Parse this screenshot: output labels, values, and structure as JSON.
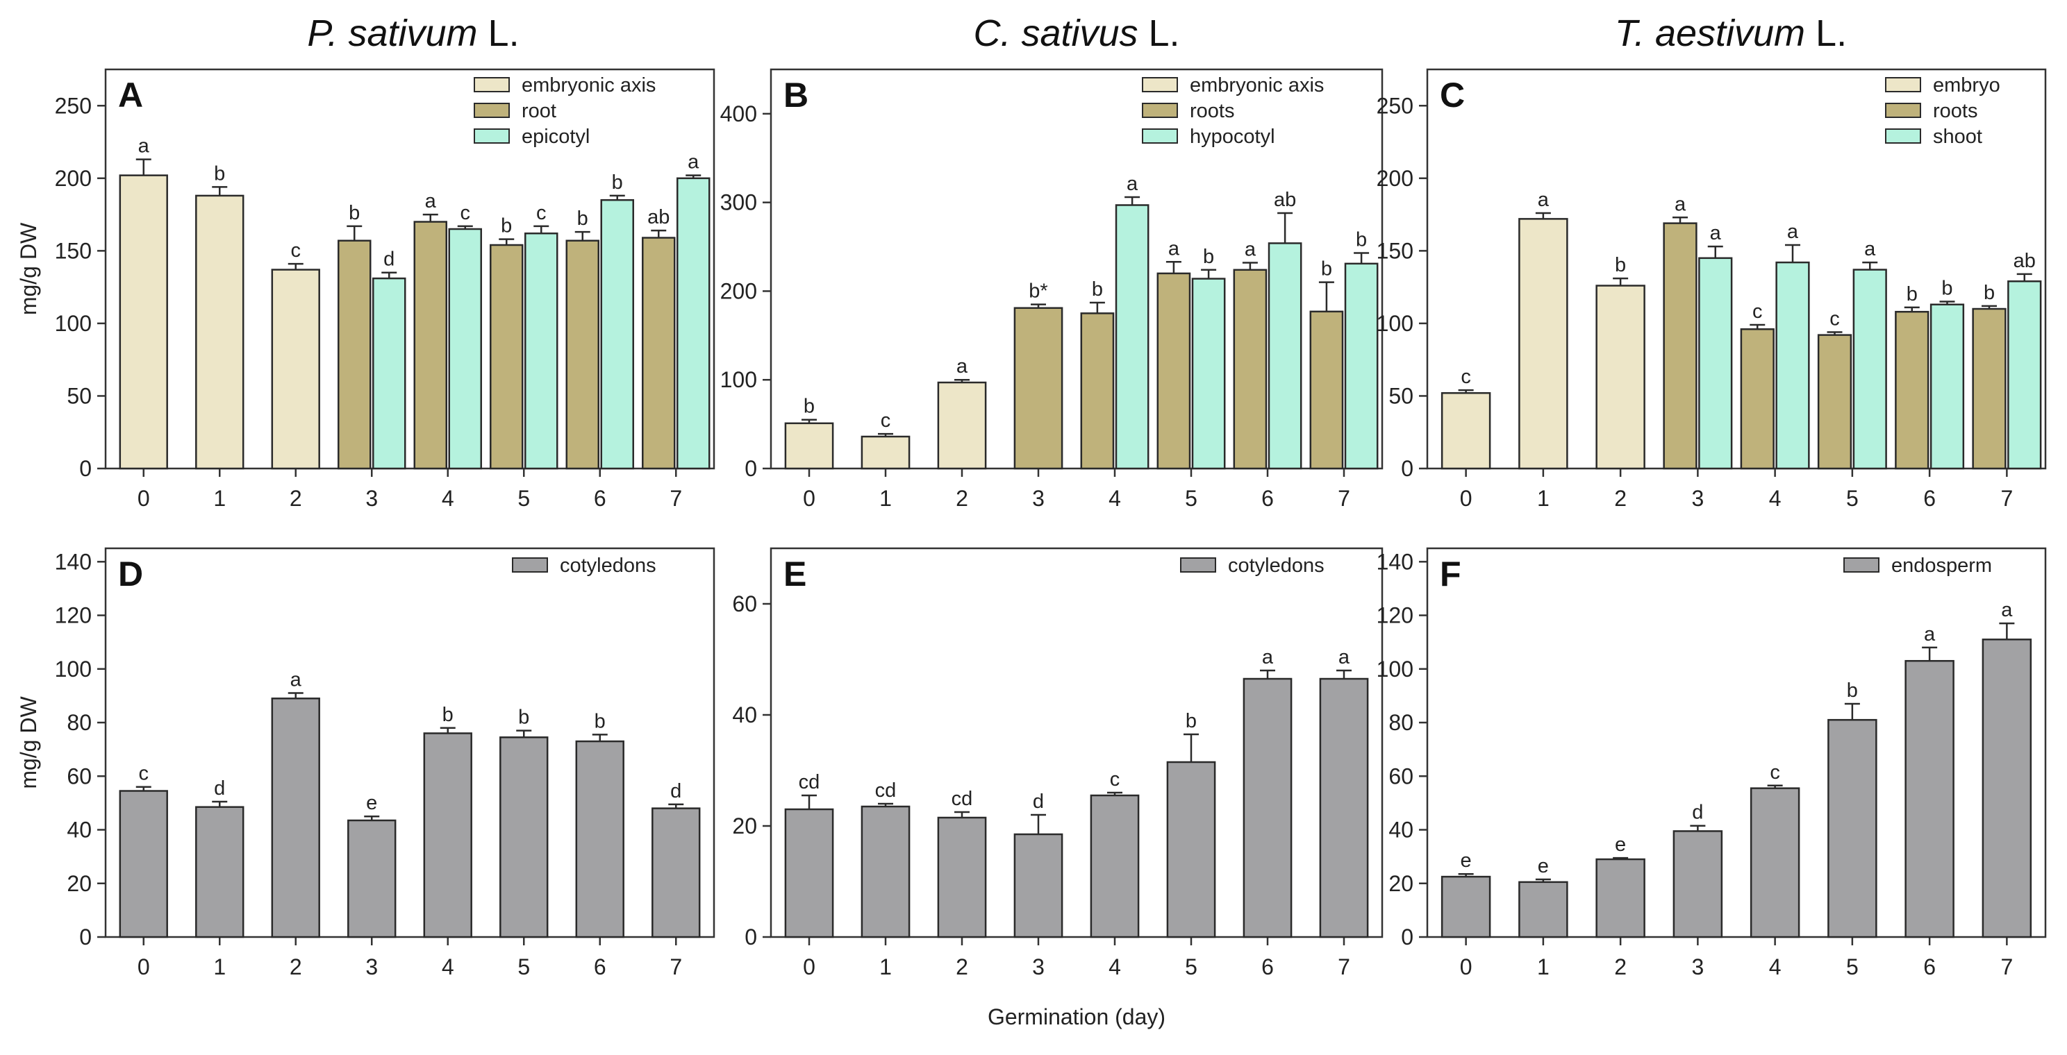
{
  "titles": [
    {
      "italic": "P. sativum",
      "rest": " L."
    },
    {
      "italic": "C. sativus",
      "rest": " L."
    },
    {
      "italic": "T. aestivum",
      "rest": " L."
    }
  ],
  "shared_xlabel": "Germination (day)",
  "colors": {
    "embryo": "#ede6c8",
    "root": "#bfb27b",
    "shoot": "#b5f2de",
    "storage": "#a2a2a4"
  },
  "chart_data": [
    {
      "panel": "A",
      "type": "bar",
      "ylabel": "mg/g DW",
      "ylim": [
        0,
        275
      ],
      "yticks": [
        0,
        50,
        100,
        150,
        200,
        250
      ],
      "days": [
        "0",
        "1",
        "2",
        "3",
        "4",
        "5",
        "6",
        "7"
      ],
      "legend": [
        {
          "label": "embryonic axis",
          "color": "embryo"
        },
        {
          "label": "root",
          "color": "root"
        },
        {
          "label": "epicotyl",
          "color": "shoot"
        }
      ],
      "bars": [
        {
          "day": 0,
          "pos": 0,
          "series": "embryo",
          "value": 202,
          "err": 11,
          "sig": "a"
        },
        {
          "day": 1,
          "pos": 0,
          "series": "embryo",
          "value": 188,
          "err": 6,
          "sig": "b"
        },
        {
          "day": 2,
          "pos": 0,
          "series": "embryo",
          "value": 137,
          "err": 4,
          "sig": "c"
        },
        {
          "day": 3,
          "pos": -1,
          "series": "root",
          "value": 157,
          "err": 10,
          "sig": "b"
        },
        {
          "day": 3,
          "pos": 1,
          "series": "shoot",
          "value": 131,
          "err": 4,
          "sig": "d"
        },
        {
          "day": 4,
          "pos": -1,
          "series": "root",
          "value": 170,
          "err": 5,
          "sig": "a"
        },
        {
          "day": 4,
          "pos": 1,
          "series": "shoot",
          "value": 165,
          "err": 2,
          "sig": "c"
        },
        {
          "day": 5,
          "pos": -1,
          "series": "root",
          "value": 154,
          "err": 4,
          "sig": "b"
        },
        {
          "day": 5,
          "pos": 1,
          "series": "shoot",
          "value": 162,
          "err": 5,
          "sig": "c"
        },
        {
          "day": 6,
          "pos": -1,
          "series": "root",
          "value": 157,
          "err": 6,
          "sig": "b"
        },
        {
          "day": 6,
          "pos": 1,
          "series": "shoot",
          "value": 185,
          "err": 3,
          "sig": "b"
        },
        {
          "day": 7,
          "pos": -1,
          "series": "root",
          "value": 159,
          "err": 5,
          "sig": "ab"
        },
        {
          "day": 7,
          "pos": 1,
          "series": "shoot",
          "value": 200,
          "err": 2,
          "sig": "a"
        }
      ]
    },
    {
      "panel": "B",
      "type": "bar",
      "ylabel": "",
      "ylim": [
        0,
        450
      ],
      "yticks": [
        0,
        100,
        200,
        300,
        400
      ],
      "days": [
        "0",
        "1",
        "2",
        "3",
        "4",
        "5",
        "6",
        "7"
      ],
      "legend": [
        {
          "label": "embryonic axis",
          "color": "embryo"
        },
        {
          "label": "roots",
          "color": "root"
        },
        {
          "label": "hypocotyl",
          "color": "shoot"
        }
      ],
      "bars": [
        {
          "day": 0,
          "pos": 0,
          "series": "embryo",
          "value": 51,
          "err": 4,
          "sig": "b"
        },
        {
          "day": 1,
          "pos": 0,
          "series": "embryo",
          "value": 36,
          "err": 3,
          "sig": "c"
        },
        {
          "day": 2,
          "pos": 0,
          "series": "embryo",
          "value": 97,
          "err": 3,
          "sig": "a"
        },
        {
          "day": 3,
          "pos": 0,
          "series": "root",
          "value": 181,
          "err": 4,
          "sig": "b*"
        },
        {
          "day": 4,
          "pos": -1,
          "series": "root",
          "value": 175,
          "err": 12,
          "sig": "b"
        },
        {
          "day": 4,
          "pos": 1,
          "series": "shoot",
          "value": 297,
          "err": 9,
          "sig": "a"
        },
        {
          "day": 5,
          "pos": -1,
          "series": "root",
          "value": 220,
          "err": 13,
          "sig": "a"
        },
        {
          "day": 5,
          "pos": 1,
          "series": "shoot",
          "value": 214,
          "err": 10,
          "sig": "b"
        },
        {
          "day": 6,
          "pos": -1,
          "series": "root",
          "value": 224,
          "err": 8,
          "sig": "a"
        },
        {
          "day": 6,
          "pos": 1,
          "series": "shoot",
          "value": 254,
          "err": 34,
          "sig": "ab"
        },
        {
          "day": 7,
          "pos": -1,
          "series": "root",
          "value": 177,
          "err": 33,
          "sig": "b"
        },
        {
          "day": 7,
          "pos": 1,
          "series": "shoot",
          "value": 231,
          "err": 12,
          "sig": "b"
        }
      ]
    },
    {
      "panel": "C",
      "type": "bar",
      "ylabel": "",
      "ylim": [
        0,
        275
      ],
      "yticks": [
        0,
        50,
        100,
        150,
        200,
        250
      ],
      "days": [
        "0",
        "1",
        "2",
        "3",
        "4",
        "5",
        "6",
        "7"
      ],
      "legend": [
        {
          "label": "embryo",
          "color": "embryo"
        },
        {
          "label": "roots",
          "color": "root"
        },
        {
          "label": "shoot",
          "color": "shoot"
        }
      ],
      "bars": [
        {
          "day": 0,
          "pos": 0,
          "series": "embryo",
          "value": 52,
          "err": 2,
          "sig": "c"
        },
        {
          "day": 1,
          "pos": 0,
          "series": "embryo",
          "value": 172,
          "err": 4,
          "sig": "a"
        },
        {
          "day": 2,
          "pos": 0,
          "series": "embryo",
          "value": 126,
          "err": 5,
          "sig": "b"
        },
        {
          "day": 3,
          "pos": -1,
          "series": "root",
          "value": 169,
          "err": 4,
          "sig": "a"
        },
        {
          "day": 3,
          "pos": 1,
          "series": "shoot",
          "value": 145,
          "err": 8,
          "sig": "a"
        },
        {
          "day": 4,
          "pos": -1,
          "series": "root",
          "value": 96,
          "err": 3,
          "sig": "c"
        },
        {
          "day": 4,
          "pos": 1,
          "series": "shoot",
          "value": 142,
          "err": 12,
          "sig": "a"
        },
        {
          "day": 5,
          "pos": -1,
          "series": "root",
          "value": 92,
          "err": 2,
          "sig": "c"
        },
        {
          "day": 5,
          "pos": 1,
          "series": "shoot",
          "value": 137,
          "err": 5,
          "sig": "a"
        },
        {
          "day": 6,
          "pos": -1,
          "series": "root",
          "value": 108,
          "err": 3,
          "sig": "b"
        },
        {
          "day": 6,
          "pos": 1,
          "series": "shoot",
          "value": 113,
          "err": 2,
          "sig": "b"
        },
        {
          "day": 7,
          "pos": -1,
          "series": "root",
          "value": 110,
          "err": 2,
          "sig": "b"
        },
        {
          "day": 7,
          "pos": 1,
          "series": "shoot",
          "value": 129,
          "err": 5,
          "sig": "ab"
        }
      ]
    },
    {
      "panel": "D",
      "type": "bar",
      "ylabel": "mg/g DW",
      "ylim": [
        0,
        145
      ],
      "yticks": [
        0,
        20,
        40,
        60,
        80,
        100,
        120,
        140
      ],
      "days": [
        "0",
        "1",
        "2",
        "3",
        "4",
        "5",
        "6",
        "7"
      ],
      "legend": [
        {
          "label": "cotyledons",
          "color": "storage"
        }
      ],
      "bars": [
        {
          "day": 0,
          "pos": 0,
          "series": "storage",
          "value": 54.5,
          "err": 1.5,
          "sig": "c"
        },
        {
          "day": 1,
          "pos": 0,
          "series": "storage",
          "value": 48.5,
          "err": 2,
          "sig": "d"
        },
        {
          "day": 2,
          "pos": 0,
          "series": "storage",
          "value": 89,
          "err": 2,
          "sig": "a"
        },
        {
          "day": 3,
          "pos": 0,
          "series": "storage",
          "value": 43.5,
          "err": 1.5,
          "sig": "e"
        },
        {
          "day": 4,
          "pos": 0,
          "series": "storage",
          "value": 76,
          "err": 2,
          "sig": "b"
        },
        {
          "day": 5,
          "pos": 0,
          "series": "storage",
          "value": 74.5,
          "err": 2.5,
          "sig": "b"
        },
        {
          "day": 6,
          "pos": 0,
          "series": "storage",
          "value": 73,
          "err": 2.5,
          "sig": "b"
        },
        {
          "day": 7,
          "pos": 0,
          "series": "storage",
          "value": 48,
          "err": 1.5,
          "sig": "d"
        }
      ]
    },
    {
      "panel": "E",
      "type": "bar",
      "ylabel": "",
      "ylim": [
        0,
        70
      ],
      "yticks": [
        0,
        20,
        40,
        60
      ],
      "days": [
        "0",
        "1",
        "2",
        "3",
        "4",
        "5",
        "6",
        "7"
      ],
      "legend": [
        {
          "label": "cotyledons",
          "color": "storage"
        }
      ],
      "bars": [
        {
          "day": 0,
          "pos": 0,
          "series": "storage",
          "value": 23,
          "err": 2.5,
          "sig": "cd"
        },
        {
          "day": 1,
          "pos": 0,
          "series": "storage",
          "value": 23.5,
          "err": 0.5,
          "sig": "cd"
        },
        {
          "day": 2,
          "pos": 0,
          "series": "storage",
          "value": 21.5,
          "err": 1,
          "sig": "cd"
        },
        {
          "day": 3,
          "pos": 0,
          "series": "storage",
          "value": 18.5,
          "err": 3.5,
          "sig": "d"
        },
        {
          "day": 4,
          "pos": 0,
          "series": "storage",
          "value": 25.5,
          "err": 0.5,
          "sig": "c"
        },
        {
          "day": 5,
          "pos": 0,
          "series": "storage",
          "value": 31.5,
          "err": 5,
          "sig": "b"
        },
        {
          "day": 6,
          "pos": 0,
          "series": "storage",
          "value": 46.5,
          "err": 1.5,
          "sig": "a"
        },
        {
          "day": 7,
          "pos": 0,
          "series": "storage",
          "value": 46.5,
          "err": 1.5,
          "sig": "a"
        }
      ]
    },
    {
      "panel": "F",
      "type": "bar",
      "ylabel": "",
      "ylim": [
        0,
        145
      ],
      "yticks": [
        0,
        20,
        40,
        60,
        80,
        100,
        120,
        140
      ],
      "days": [
        "0",
        "1",
        "2",
        "3",
        "4",
        "5",
        "6",
        "7"
      ],
      "legend": [
        {
          "label": "endosperm",
          "color": "storage"
        }
      ],
      "bars": [
        {
          "day": 0,
          "pos": 0,
          "series": "storage",
          "value": 22.5,
          "err": 1,
          "sig": "e"
        },
        {
          "day": 1,
          "pos": 0,
          "series": "storage",
          "value": 20.5,
          "err": 1,
          "sig": "e"
        },
        {
          "day": 2,
          "pos": 0,
          "series": "storage",
          "value": 29,
          "err": 0.5,
          "sig": "e"
        },
        {
          "day": 3,
          "pos": 0,
          "series": "storage",
          "value": 39.5,
          "err": 2,
          "sig": "d"
        },
        {
          "day": 4,
          "pos": 0,
          "series": "storage",
          "value": 55.5,
          "err": 1,
          "sig": "c"
        },
        {
          "day": 5,
          "pos": 0,
          "series": "storage",
          "value": 81,
          "err": 6,
          "sig": "b"
        },
        {
          "day": 6,
          "pos": 0,
          "series": "storage",
          "value": 103,
          "err": 5,
          "sig": "a"
        },
        {
          "day": 7,
          "pos": 0,
          "series": "storage",
          "value": 111,
          "err": 6,
          "sig": "a"
        }
      ]
    }
  ]
}
